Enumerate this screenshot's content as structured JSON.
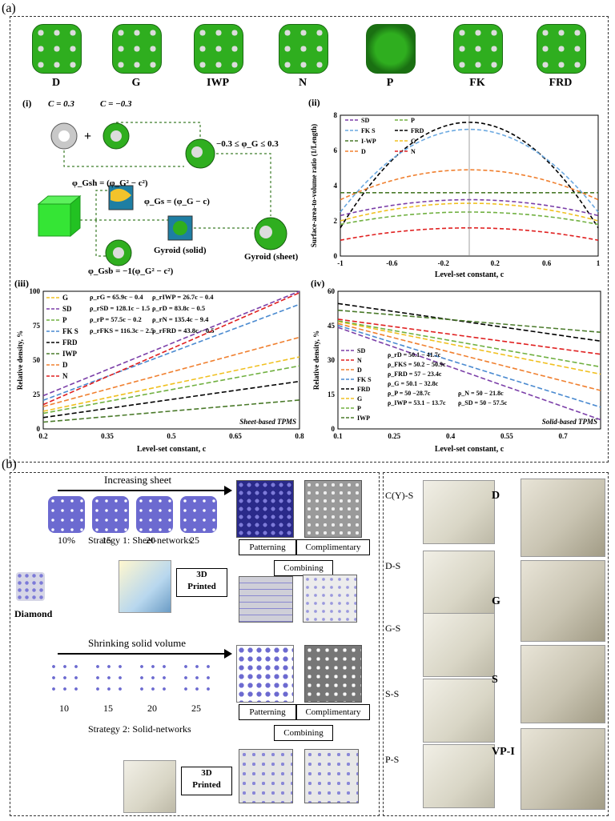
{
  "panel_a_label": "(a)",
  "panel_b_label": "(b)",
  "shapes": [
    "D",
    "G",
    "IWP",
    "N",
    "P",
    "FK",
    "FRD"
  ],
  "sub_i": {
    "label": "(i)",
    "c_pos": "C = 0.3",
    "c_neg": "C = −0.3",
    "range": "−0.3 ≤ φ_G ≤ 0.3",
    "phi_gsh": "φ_Gsh = (φ_G² − c²)",
    "phi_gs": "φ_Gs = (φ_G − c)",
    "phi_gsb": "φ_Gsb = −1(φ_G² − c²)",
    "gyroid_solid": "Gyroid (solid)",
    "gyroid_sheet": "Gyroid (sheet)"
  },
  "chart_data": [
    {
      "panel": "(ii)",
      "type": "line",
      "xlabel": "Level-set constant, c",
      "ylabel": "Surface-area-to-volume ratio (1/Length)",
      "xlim": [
        -1,
        1
      ],
      "ylim": [
        0,
        8
      ],
      "xticks": [
        "-1",
        "-0.6",
        "-0.2",
        "0.2",
        "0.6",
        "1"
      ],
      "yticks": [
        "0",
        "2",
        "4",
        "6",
        "8"
      ],
      "legend": [
        "SD",
        "P",
        "FK S",
        "FRD",
        "I-WP",
        "G",
        "D",
        "N"
      ],
      "series": [
        {
          "name": "FRD",
          "color": "#000000",
          "peak": 7.6,
          "edge": 1.6
        },
        {
          "name": "FK S",
          "color": "#6aa8e0",
          "peak": 7.2,
          "edge": 2.5
        },
        {
          "name": "D",
          "color": "#f08030",
          "peak": 4.9,
          "edge": 3.2
        },
        {
          "name": "I-WP",
          "color": "#4a7a2a",
          "peak": 3.6,
          "edge": 3.6
        },
        {
          "name": "SD",
          "color": "#7b3fa8",
          "peak": 3.2,
          "edge": 2.3
        },
        {
          "name": "G",
          "color": "#f0c020",
          "peak": 3.0,
          "edge": 2.0
        },
        {
          "name": "P",
          "color": "#70b040",
          "peak": 2.5,
          "edge": 1.8
        },
        {
          "name": "N",
          "color": "#e02020",
          "peak": 1.6,
          "edge": 0.9
        }
      ]
    },
    {
      "panel": "(iii)",
      "type": "line",
      "xlabel": "Level-set constant, c",
      "ylabel": "Relative density, %",
      "annotation": "Sheet-based TPMS",
      "xlim": [
        0.2,
        0.8
      ],
      "ylim": [
        0,
        100
      ],
      "xticks": [
        "0.2",
        "0.35",
        "0.5",
        "0.65",
        "0.8"
      ],
      "yticks": [
        "0",
        "25",
        "50",
        "75",
        "100"
      ],
      "legend": [
        "G",
        "SD",
        "P",
        "FK S",
        "FRD",
        "IWP",
        "D",
        "N"
      ],
      "equations": [
        "ρ_rG = 65.9c − 0.4",
        "ρ_rIWP = 26.7c − 0.4",
        "ρ_rSD = 128.1c − 1.5",
        "ρ_rD = 83.8c − 0.5",
        "ρ_rP = 57.5c − 0.2",
        "ρ_rN = 135.4c − 9.4",
        "ρ_rFKS = 116.3c − 2.5",
        "ρ_rFRD = 43.8c − 0.5"
      ],
      "series": [
        {
          "name": "G",
          "color": "#f0c020",
          "slope": 65.9,
          "intercept": -0.4
        },
        {
          "name": "SD",
          "color": "#7b3fa8",
          "slope": 128.1,
          "intercept": -1.5
        },
        {
          "name": "P",
          "color": "#70b040",
          "slope": 57.5,
          "intercept": -0.2
        },
        {
          "name": "FK S",
          "color": "#4a8ad0",
          "slope": 116.3,
          "intercept": -2.5
        },
        {
          "name": "FRD",
          "color": "#000000",
          "slope": 43.8,
          "intercept": -0.5
        },
        {
          "name": "IWP",
          "color": "#4a7a2a",
          "slope": 26.7,
          "intercept": -0.4
        },
        {
          "name": "D",
          "color": "#f08030",
          "slope": 83.8,
          "intercept": -0.5
        },
        {
          "name": "N",
          "color": "#e02020",
          "slope": 135.4,
          "intercept": -9.4
        }
      ]
    },
    {
      "panel": "(iv)",
      "type": "line",
      "xlabel": "Level-set constant, c",
      "ylabel": "Relative density, %",
      "annotation": "Solid-based TPMS",
      "xlim": [
        0.1,
        0.8
      ],
      "ylim": [
        0,
        60
      ],
      "xticks": [
        "0.1",
        "0.25",
        "0.4",
        "0.55",
        "0.7"
      ],
      "yticks": [
        "0",
        "15",
        "30",
        "45",
        "60"
      ],
      "legend": [
        "SD",
        "N",
        "D",
        "FK S",
        "FRD",
        "G",
        "P",
        "IWP"
      ],
      "equations": [
        "ρ_rD = 50.1 − 41.7c",
        "ρ_FKS = 50.2 − 50.9c",
        "ρ_FRD = 57 − 23.4c",
        "ρ_G = 50.1 − 32.8c",
        "ρ_P = 50 −28.7c",
        "ρ_N = 50 − 21.8c",
        "ρ_IWP = 53.1 − 13.7c",
        "ρ_SD = 50 − 57.5c"
      ],
      "series": [
        {
          "name": "SD",
          "color": "#7b3fa8",
          "a": 50,
          "b": -57.5
        },
        {
          "name": "N",
          "color": "#e02020",
          "a": 50,
          "b": -21.8
        },
        {
          "name": "D",
          "color": "#f08030",
          "a": 50.1,
          "b": -41.7
        },
        {
          "name": "FK S",
          "color": "#4a8ad0",
          "a": 50.2,
          "b": -50.9
        },
        {
          "name": "FRD",
          "color": "#000000",
          "a": 57,
          "b": -23.4
        },
        {
          "name": "G",
          "color": "#f0c020",
          "a": 50.1,
          "b": -32.8
        },
        {
          "name": "P",
          "color": "#70b040",
          "a": 50,
          "b": -28.7
        },
        {
          "name": "IWP",
          "color": "#4a7a2a",
          "a": 53.1,
          "b": -13.7
        }
      ]
    }
  ],
  "panel_b": {
    "increasing_sheet": "Increasing sheet",
    "sheet_steps": [
      "10%",
      "15",
      "20",
      "25"
    ],
    "strategy1": "Strategy 1: Sheet-networks",
    "diamond": "Diamond",
    "shrinking": "Shrinking solid volume",
    "solid_steps": [
      "10",
      "15",
      "20",
      "25"
    ],
    "strategy2": "Strategy 2: Solid-networks",
    "patterning": "Patterning",
    "complimentary": "Complimentary",
    "combining": "Combining",
    "printed": "3D\nPrinted",
    "printed_line1": "3D",
    "printed_line2": "Printed",
    "left_labels": [
      "C(Y)-S",
      "D-S",
      "G-S",
      "S-S",
      "P-S"
    ],
    "right_labels": [
      "D",
      "G",
      "S",
      "VP-I"
    ]
  }
}
